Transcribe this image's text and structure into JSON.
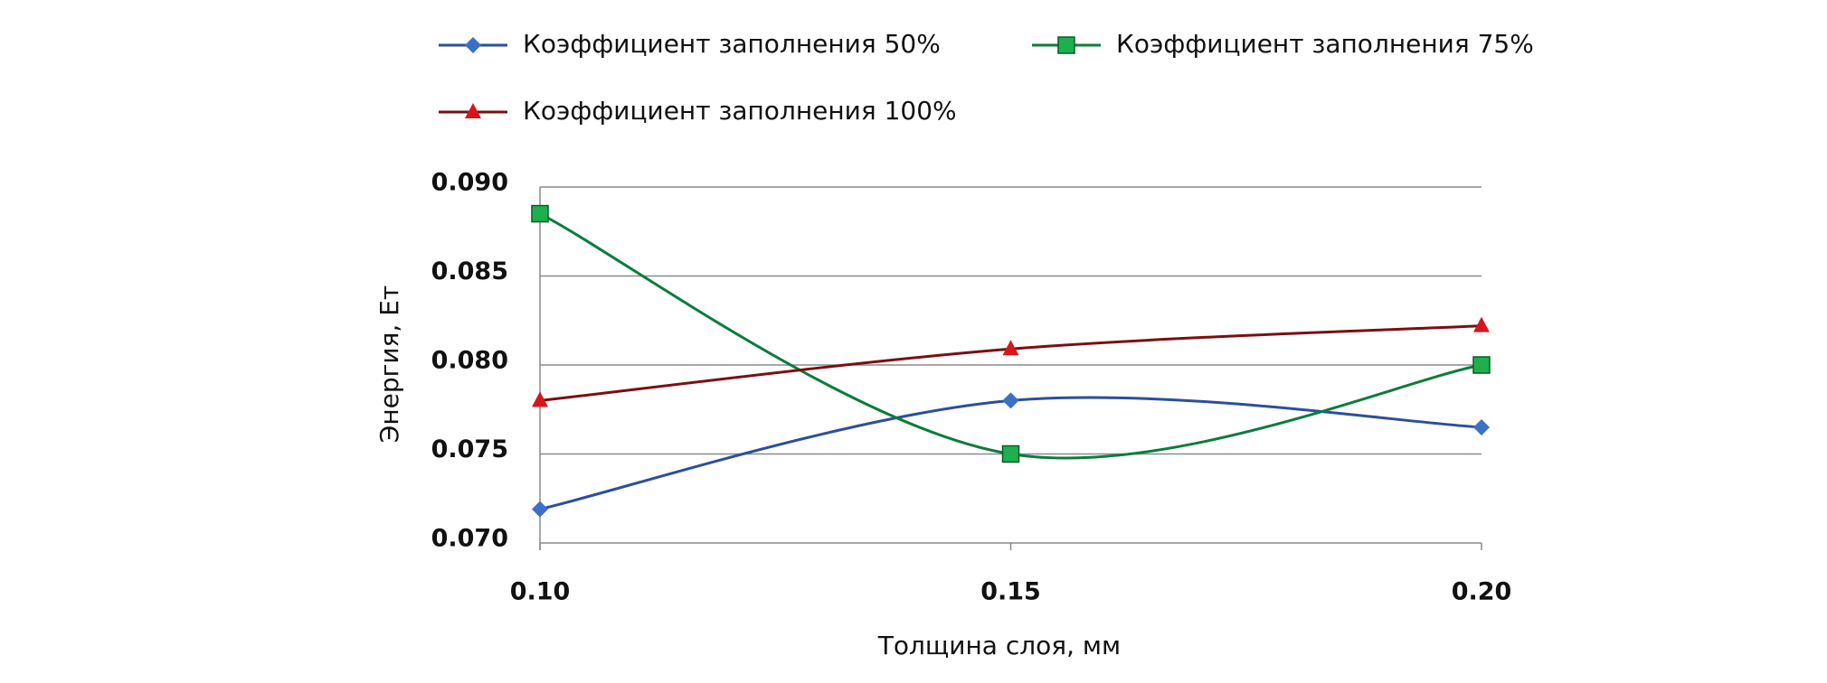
{
  "chart_data": {
    "type": "line",
    "x": [
      0.1,
      0.15,
      0.2
    ],
    "series": [
      {
        "name": "Коэффициент заполнения 50%",
        "color": "#2b4f9e",
        "marker": "diamond",
        "marker_color": "#3a70c8",
        "values": [
          0.0719,
          0.078,
          0.0765
        ]
      },
      {
        "name": "Коэффициент заполнения 75%",
        "color": "#0c7c3c",
        "marker": "square",
        "marker_color": "#1db04c",
        "values": [
          0.0885,
          0.075,
          0.08
        ]
      },
      {
        "name": "Коэффициент заполнения 100%",
        "color": "#7a0f12",
        "marker": "triangle",
        "marker_color": "#d8151c",
        "values": [
          0.078,
          0.0809,
          0.0822
        ]
      }
    ],
    "xlabel": "Толщина слоя, мм",
    "ylabel": "Энергия, Ет",
    "xlim": [
      0.1,
      0.2
    ],
    "xticks": [
      {
        "value": 0.1,
        "label": "0.10"
      },
      0.15,
      {
        "value": 0.2,
        "label": "0.20"
      }
    ],
    "ylim": [
      0.07,
      0.09
    ],
    "yticks": [
      {
        "value": 0.07,
        "label": "0.070"
      },
      0.075,
      {
        "value": 0.08,
        "label": "0.080"
      },
      0.085,
      {
        "value": 0.09,
        "label": "0.090"
      }
    ],
    "grid": true,
    "smooth": true
  }
}
